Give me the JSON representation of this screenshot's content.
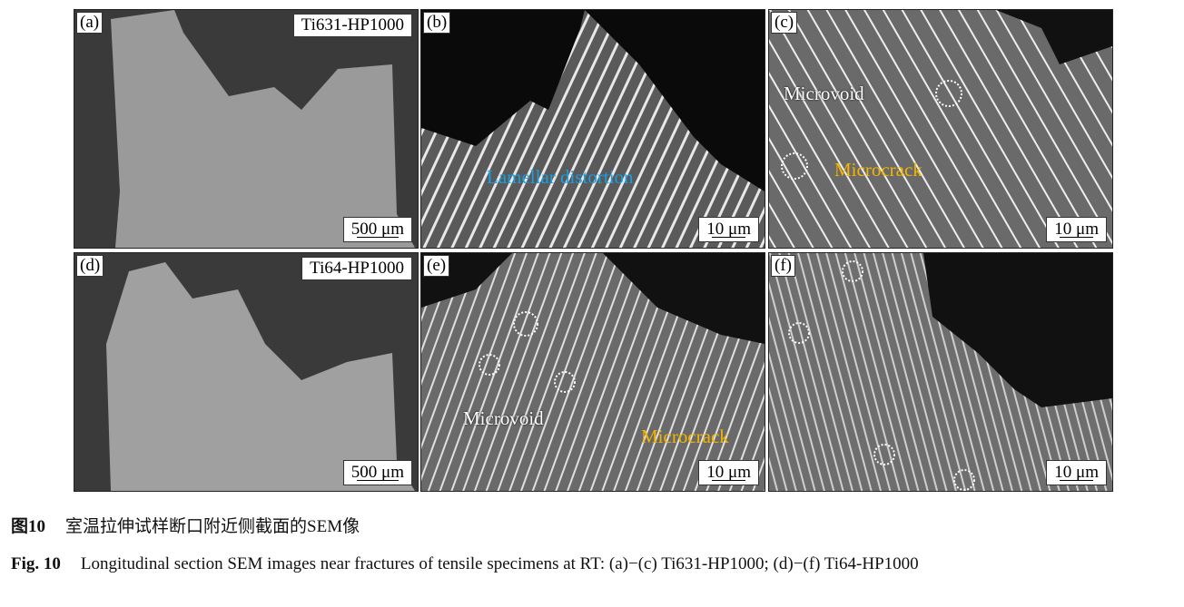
{
  "panels": [
    {
      "label": "(a)",
      "tag": "Ti631-HP1000",
      "scale": "500 μm"
    },
    {
      "label": "(b)",
      "scale": "10 μm",
      "annotations": [
        "Lamellar distortion"
      ]
    },
    {
      "label": "(c)",
      "scale": "10 μm",
      "annotations": [
        "Microvoid",
        "Microcrack"
      ]
    },
    {
      "label": "(d)",
      "tag": "Ti64-HP1000",
      "scale": "500 μm"
    },
    {
      "label": "(e)",
      "scale": "10 μm",
      "annotations": [
        "Microvoid",
        "Microcrack"
      ]
    },
    {
      "label": "(f)",
      "scale": "10 μm"
    }
  ],
  "colors": {
    "microvoid": "#ffffff",
    "microcrack": "#f4b400",
    "lamellar": "#1a9fe0"
  },
  "caption": {
    "cn_number": "图10",
    "cn_text": "室温拉伸试样断口附近侧截面的SEM像",
    "en_number": "Fig. 10",
    "en_text": "Longitudinal section SEM images near fractures of tensile specimens at RT: (a)−(c) Ti631-HP1000; (d)−(f) Ti64-HP1000"
  }
}
